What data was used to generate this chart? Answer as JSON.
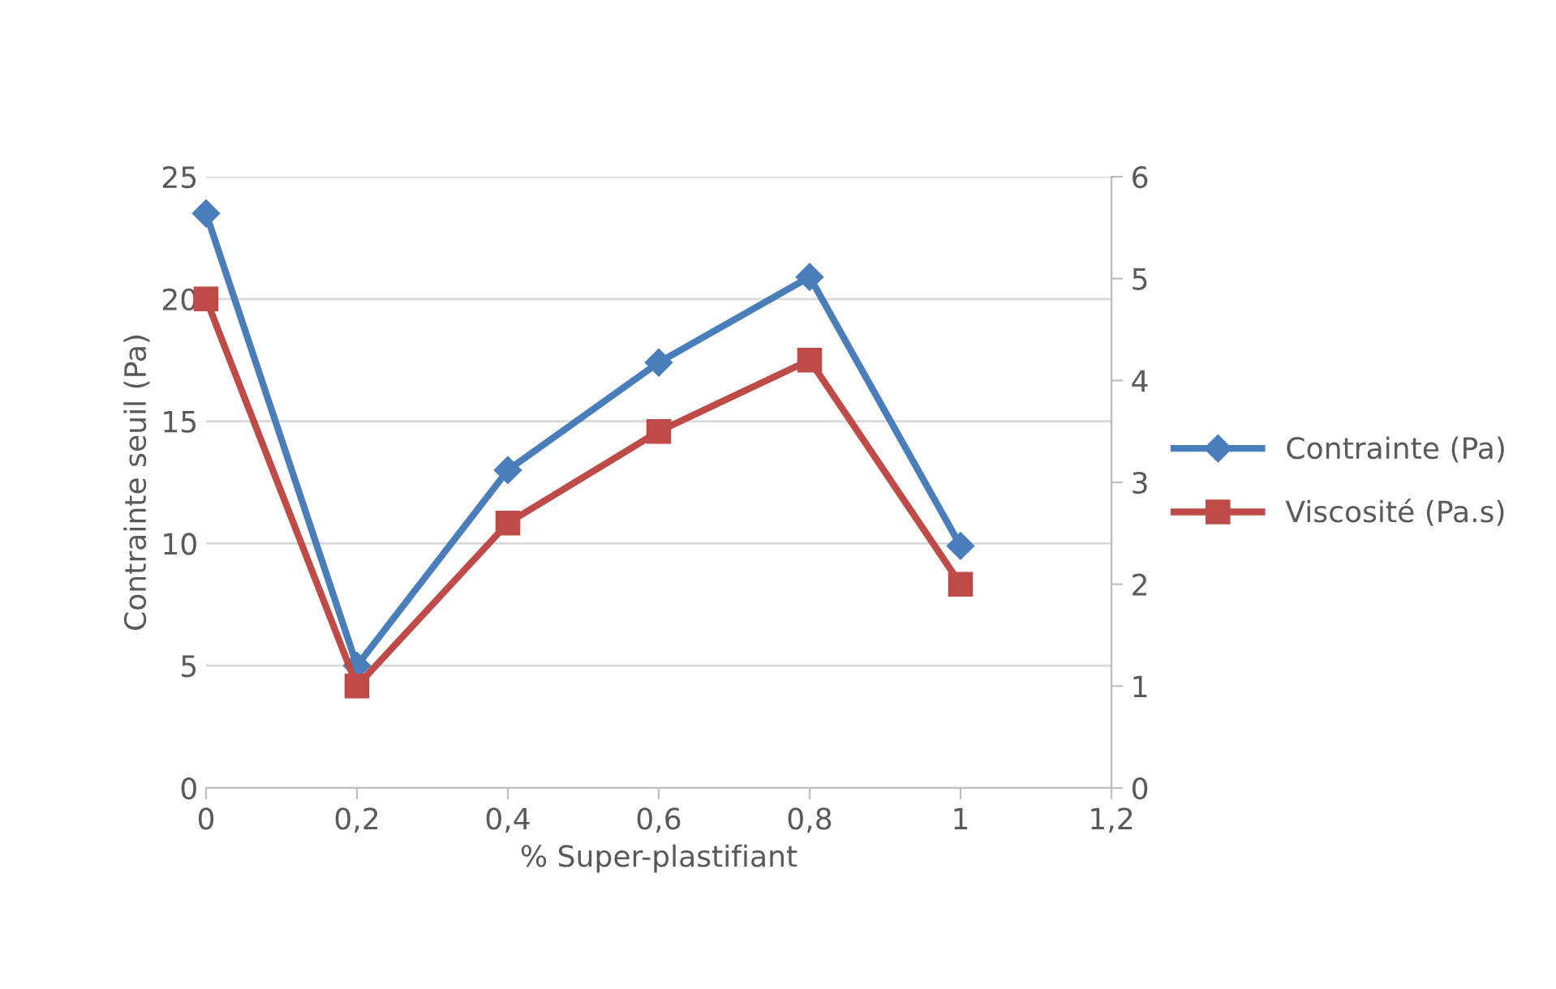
{
  "chart_data": {
    "type": "line",
    "xlabel": "% Super-plastifiant",
    "ylabel": "Contrainte seuil (Pa)",
    "x": [
      0,
      0.2,
      0.4,
      0.6,
      0.8,
      1
    ],
    "xlim": [
      0,
      1.2
    ],
    "xticks": [
      {
        "value": 0,
        "label": "0"
      },
      {
        "value": 0.2,
        "label": "0,2"
      },
      {
        "value": 0.4,
        "label": "0,4"
      },
      {
        "value": 0.6,
        "label": "0,6"
      },
      {
        "value": 0.8,
        "label": "0,8"
      },
      {
        "value": 1,
        "label": "1"
      },
      {
        "value": 1.2,
        "label": "1,2"
      }
    ],
    "ylim": [
      0,
      25
    ],
    "yticks": [
      0,
      5,
      10,
      15,
      20,
      25
    ],
    "y2lim": [
      0,
      6
    ],
    "y2ticks": [
      0,
      1,
      2,
      3,
      4,
      5,
      6
    ],
    "grid": "y",
    "legend": "right",
    "series": [
      {
        "name": "Contrainte (Pa)",
        "color": "#4a7ebb",
        "marker": "diamond",
        "values": [
          23.5,
          5.0,
          13.0,
          17.4,
          20.9,
          9.9
        ]
      },
      {
        "name": "Viscosité (Pa.s)",
        "color": "#be4b48",
        "marker": "square",
        "axis": "y2",
        "values": [
          4.8,
          1.0,
          2.6,
          3.5,
          4.2,
          2.0
        ]
      }
    ]
  }
}
